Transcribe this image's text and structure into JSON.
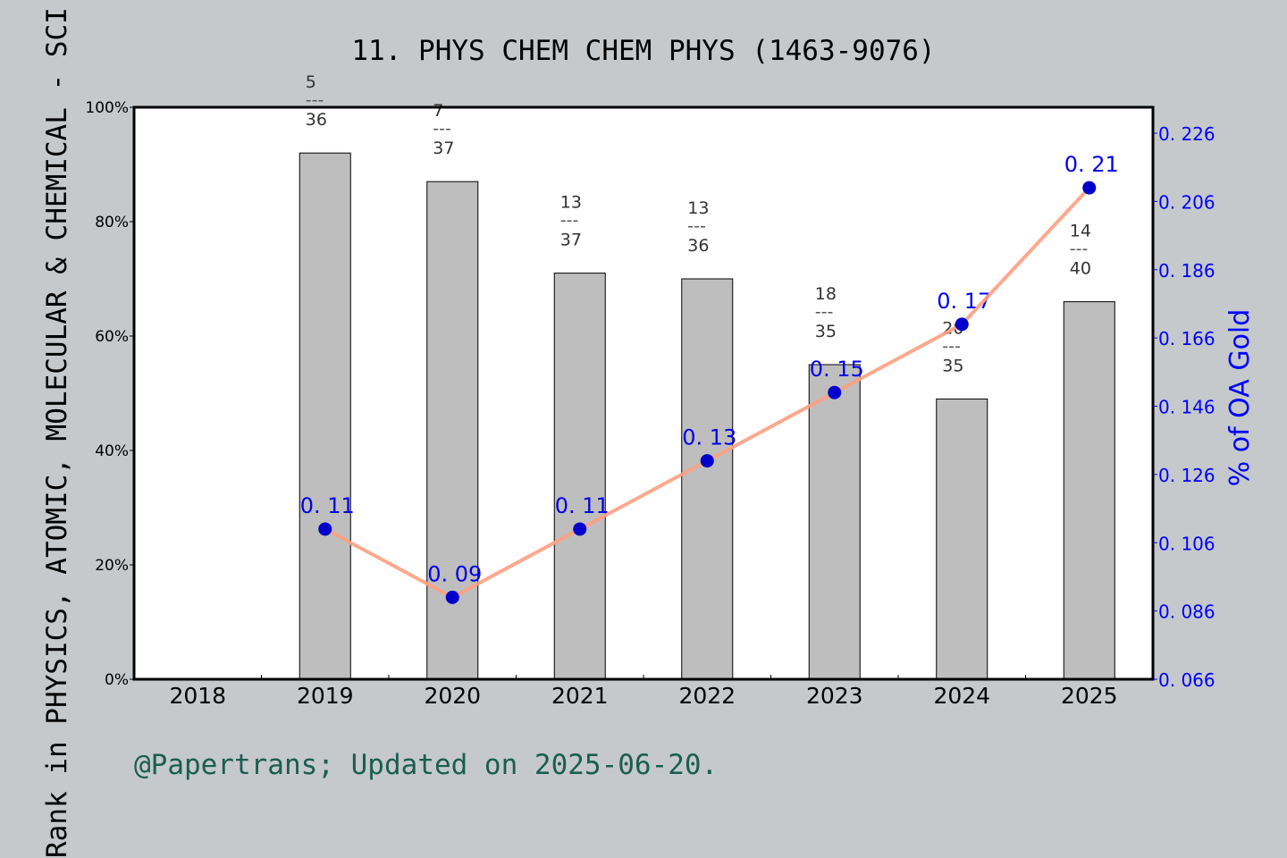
{
  "chart_data": {
    "type": "bar+line",
    "title": "11. PHYS CHEM CHEM PHYS (1463-9076)",
    "ylabel": "Rank in PHYSICS, ATOMIC, MOLECULAR & CHEMICAL - SCI",
    "y2label": "% of OA Gold",
    "categories": [
      "2018",
      "2019",
      "2020",
      "2021",
      "2022",
      "2023",
      "2024",
      "2025"
    ],
    "ylim": [
      0,
      100
    ],
    "yticks": [
      "0%",
      "20%",
      "40%",
      "60%",
      "80%",
      "100%"
    ],
    "y2lim": [
      0.066,
      0.236
    ],
    "y2ticks": [
      "0. 066",
      "0. 086",
      "0. 106",
      "0. 126",
      "0. 146",
      "0. 166",
      "0. 186",
      "0. 206",
      "0. 226"
    ],
    "bars": {
      "values": [
        null,
        92,
        87,
        71,
        70,
        55,
        49,
        66
      ],
      "rank_labels": [
        null,
        {
          "num": "5",
          "den": "36"
        },
        {
          "num": "7",
          "den": "37"
        },
        {
          "num": "13",
          "den": "37"
        },
        {
          "num": "13",
          "den": "36"
        },
        {
          "num": "18",
          "den": "35"
        },
        {
          "num": "20",
          "den": "35"
        },
        {
          "num": "14",
          "den": "40"
        }
      ],
      "color": "#b8b8b8"
    },
    "line": {
      "values": [
        null,
        0.11,
        0.09,
        0.11,
        0.13,
        0.15,
        0.17,
        0.21
      ],
      "labels": [
        null,
        "0. 11",
        "0. 09",
        "0. 11",
        "0. 13",
        "0. 15",
        "0. 17",
        "0. 21"
      ],
      "line_color": "#ff9f7f",
      "marker_color": "#0000cc"
    },
    "grid": false,
    "footer": "@Papertrans; Updated on 2025-06-20.",
    "colors": {
      "background": "#c5c9cc",
      "plot": "#ffffff",
      "right_axis": "#0000ff",
      "footer": "#1a5e50"
    }
  }
}
